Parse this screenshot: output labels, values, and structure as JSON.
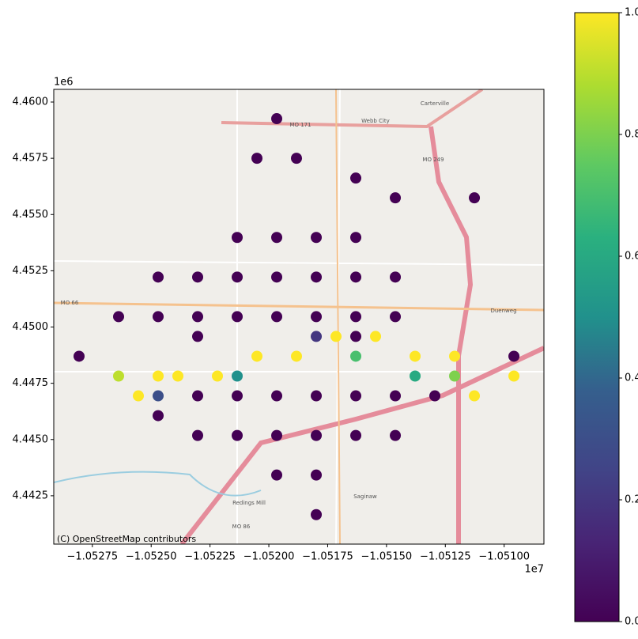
{
  "chart_data": {
    "type": "scatter",
    "colormap": "viridis",
    "x": [
      -10519665,
      -10520505,
      -10518825,
      -10516305,
      -10514625,
      -10521345,
      -10519665,
      -10517985,
      -10516305,
      -10524705,
      -10523025,
      -10521345,
      -10519665,
      -10517985,
      -10516305,
      -10514625,
      -10526385,
      -10524705,
      -10523025,
      -10521345,
      -10519665,
      -10517985,
      -10516305,
      -10514625,
      -10528065,
      -10523025,
      -10516305,
      -10523025,
      -10521345,
      -10519665,
      -10517985,
      -10516305,
      -10514625,
      -10512945,
      -10524705,
      -10523025,
      -10521345,
      -10519665,
      -10517985,
      -10516305,
      -10514625,
      -10517985,
      -10517985,
      -10519665,
      -10511265,
      -10509585,
      -10525545,
      -10523865,
      -10522185,
      -10520505,
      -10518825,
      -10517145,
      -10515465,
      -10513785,
      -10512105,
      -10511265,
      -10509585,
      -10524705,
      -10526385,
      -10524705,
      -10521345,
      -10517985,
      -10513785,
      -10512105,
      -10516305
    ],
    "y": [
      4459261,
      4457501,
      4457501,
      4456621,
      4455741,
      4453981,
      4453981,
      4453981,
      4453981,
      4452221,
      4452221,
      4452221,
      4452221,
      4452221,
      4452221,
      4452221,
      4450461,
      4450461,
      4450461,
      4450461,
      4450461,
      4450461,
      4450461,
      4450461,
      4448701,
      4449581,
      4449581,
      4446941,
      4446941,
      4446941,
      4446941,
      4446941,
      4446941,
      4446941,
      4446061,
      4445181,
      4445181,
      4445181,
      4445181,
      4445181,
      4445181,
      4443421,
      4441661,
      4443421,
      4455741,
      4448701,
      4446941,
      4447821,
      4447821,
      4448701,
      4448701,
      4449581,
      4449581,
      4448701,
      4448701,
      4446941,
      4447821,
      4447821,
      4447821,
      4446941,
      4447821,
      4449581,
      4447821,
      4447821,
      4448701
    ],
    "values": [
      0,
      0,
      0,
      0,
      0,
      0,
      0,
      0,
      0,
      0,
      0,
      0,
      0,
      0,
      0,
      0,
      0,
      0,
      0,
      0,
      0,
      0,
      0,
      0,
      0,
      0,
      0,
      0,
      0,
      0,
      0,
      0,
      0,
      0,
      0,
      0,
      0,
      0,
      0,
      0,
      0,
      0,
      0,
      0,
      0,
      0,
      1,
      1,
      1,
      1,
      1,
      1,
      1,
      1,
      1,
      1,
      1,
      1,
      0.9,
      0.3,
      0.5,
      0.2,
      0.6,
      0.8,
      0.7
    ],
    "xlim": [
      -10529140,
      -10508310
    ],
    "ylim": [
      4440352,
      4460563
    ],
    "xticks": [
      {
        "value": -10527500,
        "label": "−1.05275"
      },
      {
        "value": -10525000,
        "label": "−1.05250"
      },
      {
        "value": -10522500,
        "label": "−1.05225"
      },
      {
        "value": -10520000,
        "label": "−1.05200"
      },
      {
        "value": -10517500,
        "label": "−1.05175"
      },
      {
        "value": -10515000,
        "label": "−1.05150"
      },
      {
        "value": -10512500,
        "label": "−1.05125"
      },
      {
        "value": -10510000,
        "label": "−1.05100"
      }
    ],
    "yticks": [
      {
        "value": 4442500,
        "label": "4.4425"
      },
      {
        "value": 4445000,
        "label": "4.4450"
      },
      {
        "value": 4447500,
        "label": "4.4475"
      },
      {
        "value": 4450000,
        "label": "4.4500"
      },
      {
        "value": 4452500,
        "label": "4.4525"
      },
      {
        "value": 4455000,
        "label": "4.4550"
      },
      {
        "value": 4457500,
        "label": "4.4575"
      },
      {
        "value": 4460000,
        "label": "4.4600"
      }
    ],
    "x_offset_label": "1e7",
    "y_offset_label": "1e6",
    "attribution": "(C) OpenStreetMap contributors",
    "map_labels": [
      "Webb City",
      "Carterville",
      "MO 171",
      "MO 249",
      "MO 66",
      "Duenweg",
      "Saginaw",
      "Redings Mill",
      "MO 86"
    ],
    "colorbar": {
      "lim": [
        0,
        1
      ],
      "ticks": [
        {
          "value": 0,
          "label": "0.0"
        },
        0.2,
        0.4,
        0.6,
        0.8,
        {
          "value": 1,
          "label": "1.0"
        }
      ]
    }
  }
}
